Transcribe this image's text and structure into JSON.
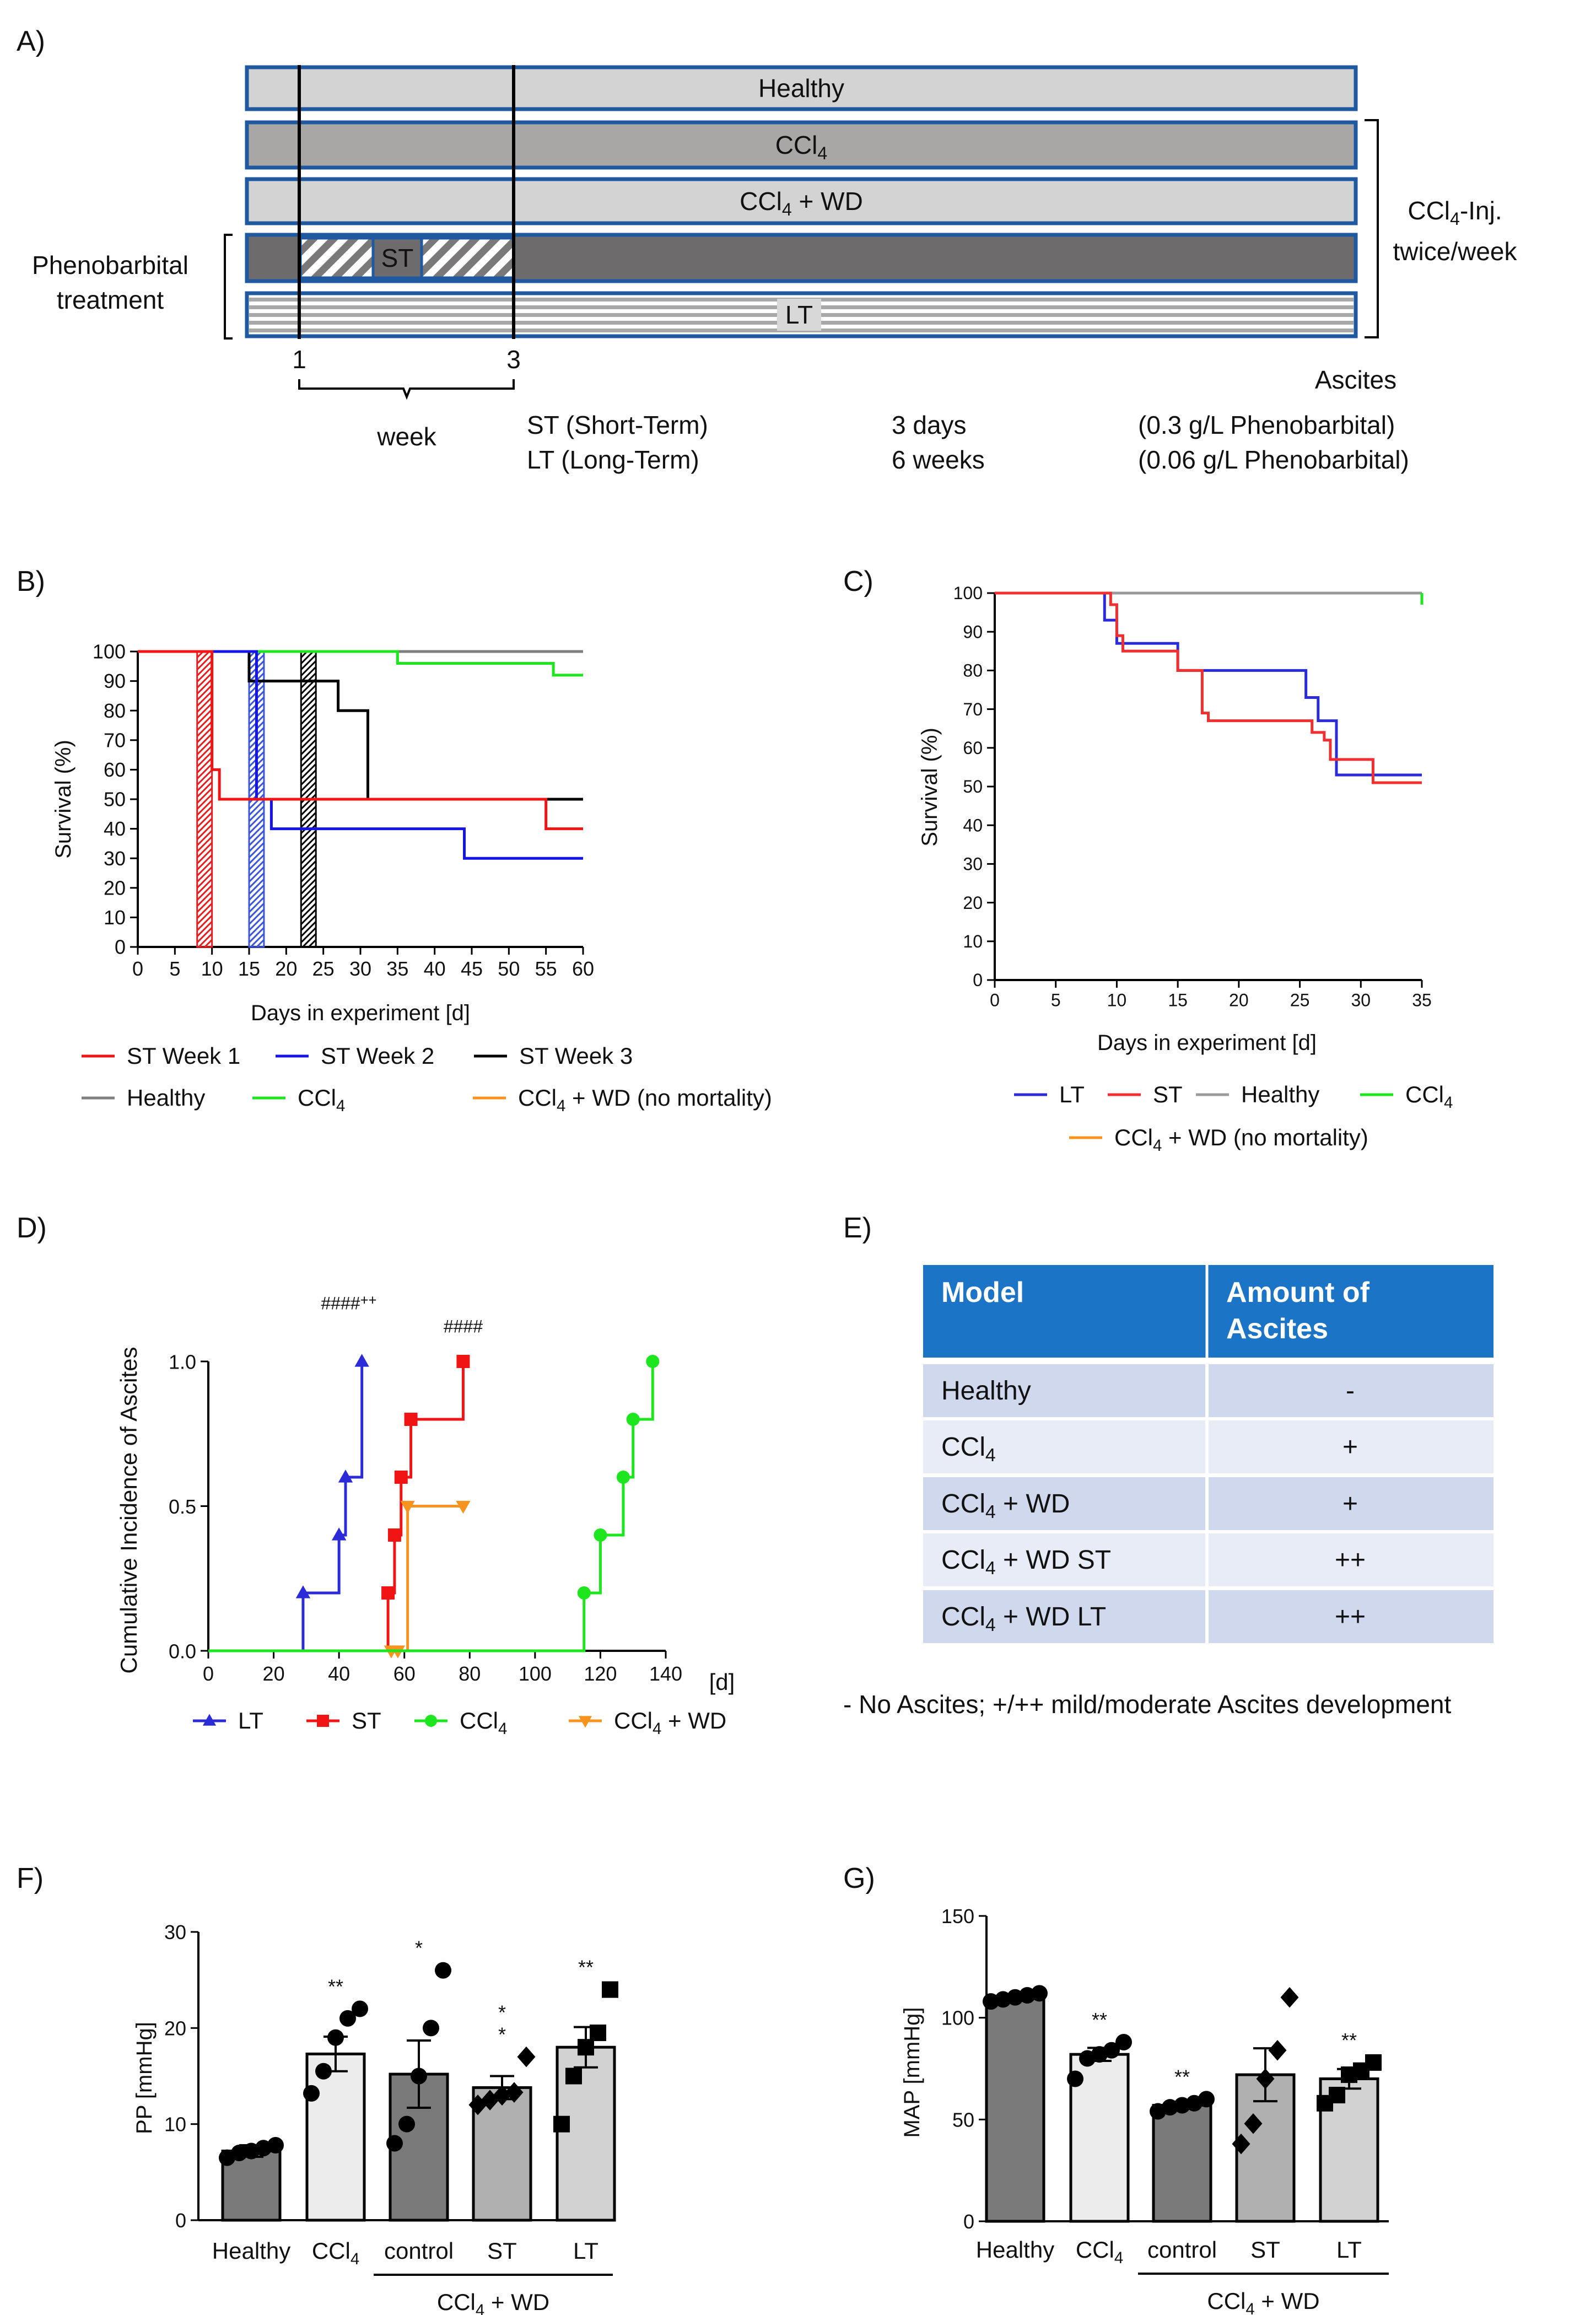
{
  "panel_labels": {
    "a": "A)",
    "b": "B)",
    "c": "C)",
    "d": "D)",
    "e": "E)",
    "f": "F)",
    "g": "G)"
  },
  "timeline": {
    "rows": [
      {
        "label": "Healthy",
        "color": "#d3d3d3"
      },
      {
        "label": "CCl",
        "sub": "4",
        "color": "#a9a6a6"
      },
      {
        "label": "CCl",
        "sub": "4",
        "tail": " + WD",
        "color": "#d3d3d3"
      },
      {
        "label": "ST",
        "color": "#6d6b6b"
      },
      {
        "label": "LT",
        "color": "#d8d8d8"
      }
    ],
    "week_ticks": [
      "1",
      "3"
    ],
    "week_label": "week",
    "phenobarbital_line1": "Phenobarbital",
    "phenobarbital_line2": "treatment",
    "injection_line1_pre": "CCl",
    "injection_line1_sub": "4",
    "injection_line1_post": "-Inj.",
    "injection_line2": "twice/week",
    "ascites_label": "Ascites",
    "st_name": "ST (Short-Term)",
    "lt_name": "LT (Long-Term)",
    "st_duration": "3 days",
    "lt_duration": "6 weeks",
    "st_dose": "(0.3 g/L Phenobarbital)",
    "lt_dose": "(0.06 g/L Phenobarbital)",
    "blue": "#1f5aa0"
  },
  "chart_data": [
    {
      "id": "B",
      "type": "line",
      "title": "",
      "xlabel": "Days in experiment [d]",
      "ylabel": "Survival (%)",
      "xlim": [
        0,
        60
      ],
      "ylim": [
        0,
        100
      ],
      "xticks": [
        0,
        5,
        10,
        15,
        20,
        25,
        30,
        35,
        40,
        45,
        50,
        55,
        60
      ],
      "yticks": [
        0,
        10,
        20,
        30,
        40,
        50,
        60,
        70,
        80,
        90,
        100
      ],
      "series": [
        {
          "name": "Healthy",
          "color": "#7f7f7f",
          "x": [
            0,
            60
          ],
          "y": [
            100,
            100
          ]
        },
        {
          "name": "CCl4",
          "color": "#1ee61e",
          "x": [
            0,
            35,
            35,
            56,
            56,
            60
          ],
          "y": [
            100,
            100,
            96,
            96,
            92,
            92
          ]
        },
        {
          "name": "ST Week 3",
          "color": "#000000",
          "x": [
            0,
            15,
            15,
            22,
            22,
            27,
            27,
            31,
            31,
            60
          ],
          "y": [
            100,
            100,
            90,
            90,
            90,
            90,
            80,
            80,
            50,
            50
          ]
        },
        {
          "name": "ST Week 2",
          "color": "#1414e6",
          "x": [
            0,
            16,
            16,
            18,
            18,
            44,
            44,
            60
          ],
          "y": [
            100,
            100,
            50,
            50,
            40,
            40,
            30,
            30
          ]
        },
        {
          "name": "ST Week 1",
          "color": "#f01414",
          "x": [
            0,
            10,
            10,
            11,
            11,
            55,
            55,
            60
          ],
          "y": [
            100,
            100,
            60,
            60,
            50,
            50,
            40,
            40
          ]
        }
      ],
      "hatched_periods": [
        {
          "from": 8,
          "to": 10,
          "color": "#e81e1e"
        },
        {
          "from": 15,
          "to": 17,
          "color": "#3a55d8"
        },
        {
          "from": 22,
          "to": 24,
          "color": "#000000"
        }
      ],
      "legend_rows": [
        [
          {
            "label": "ST Week 1",
            "color": "#f01414"
          },
          {
            "label": "ST Week 2",
            "color": "#1414e6"
          },
          {
            "label": "ST Week 3",
            "color": "#000000"
          }
        ],
        [
          {
            "label": "Healthy",
            "color": "#7f7f7f"
          },
          {
            "label": "CCl",
            "sub": "4",
            "color": "#1ee61e"
          },
          {
            "label": "CCl",
            "sub": "4",
            "tail": " + WD (no mortality)",
            "color": "#f7941d"
          }
        ]
      ]
    },
    {
      "id": "C",
      "type": "line",
      "title": "",
      "xlabel": "Days in experiment [d]",
      "ylabel": "Survival (%)",
      "xlim": [
        0,
        35
      ],
      "ylim": [
        0,
        100
      ],
      "xticks": [
        0,
        5,
        10,
        15,
        20,
        25,
        30,
        35
      ],
      "yticks": [
        0,
        10,
        20,
        30,
        40,
        50,
        60,
        70,
        80,
        90,
        100
      ],
      "series": [
        {
          "name": "Healthy",
          "color": "#9a9a9a",
          "x": [
            0,
            35
          ],
          "y": [
            100,
            100
          ]
        },
        {
          "name": "CCl4",
          "color": "#1ee61e",
          "x": [
            35,
            35
          ],
          "y": [
            100,
            97
          ]
        },
        {
          "name": "LT",
          "color": "#2b2bd8",
          "x": [
            0,
            9,
            9,
            9.5,
            9.5,
            10,
            10,
            15,
            15,
            25.5,
            25.5,
            26.5,
            26.5,
            28,
            28,
            35
          ],
          "y": [
            100,
            100,
            93,
            93,
            93,
            93,
            87,
            87,
            80,
            80,
            73,
            73,
            67,
            67,
            53,
            53
          ]
        },
        {
          "name": "ST",
          "color": "#f03030",
          "x": [
            0,
            9.5,
            9.5,
            10,
            10,
            10.5,
            10.5,
            15,
            15,
            17,
            17,
            17.5,
            17.5,
            26,
            26,
            27,
            27,
            27.5,
            27.5,
            31,
            31,
            35
          ],
          "y": [
            100,
            100,
            97,
            97,
            89,
            89,
            85,
            85,
            80,
            80,
            69,
            69,
            67,
            67,
            64,
            64,
            62,
            62,
            57,
            57,
            51,
            51
          ]
        }
      ],
      "legend_rows": [
        [
          {
            "label": "LT",
            "color": "#2b2bd8"
          },
          {
            "label": "ST",
            "color": "#f03030"
          },
          {
            "label": "Healthy",
            "color": "#9a9a9a"
          },
          {
            "label": "CCl",
            "sub": "4",
            "color": "#1ee61e"
          }
        ],
        [
          {
            "label": "CCl",
            "sub": "4",
            "tail": " + WD (no mortality)",
            "color": "#f7941d"
          }
        ]
      ]
    },
    {
      "id": "D",
      "type": "line",
      "title": "",
      "xlabel": "[d]",
      "ylabel": "Cumulative Incidence of Ascites",
      "xlim": [
        0,
        140
      ],
      "ylim": [
        0,
        1.0
      ],
      "xticks": [
        0,
        20,
        40,
        60,
        80,
        100,
        120,
        140
      ],
      "yticks": [
        0.0,
        0.5,
        1.0
      ],
      "ytick_labels": [
        "0.0",
        "0.5",
        "1.0"
      ],
      "annotations": [
        {
          "text": "####",
          "sup": "++",
          "x": 43,
          "y": 1.18
        },
        {
          "text": "####",
          "sup": "",
          "x": 78,
          "y": 1.1
        }
      ],
      "series": [
        {
          "name": "LT",
          "color": "#2b2bd8",
          "marker": "triangle",
          "x": [
            0,
            29,
            29,
            40,
            40,
            42,
            42,
            47,
            47
          ],
          "y": [
            0,
            0,
            0.2,
            0.2,
            0.4,
            0.4,
            0.6,
            0.6,
            1.0
          ],
          "points_x": [
            29,
            40,
            42,
            47
          ],
          "points_y": [
            0.2,
            0.4,
            0.6,
            1.0
          ]
        },
        {
          "name": "ST",
          "color": "#f01414",
          "marker": "square",
          "x": [
            0,
            55,
            55,
            57,
            57,
            59,
            59,
            62,
            62,
            78,
            78
          ],
          "y": [
            0,
            0,
            0.2,
            0.2,
            0.4,
            0.4,
            0.6,
            0.6,
            0.8,
            0.8,
            1.0
          ],
          "points_x": [
            55,
            57,
            59,
            62,
            78
          ],
          "points_y": [
            0.2,
            0.4,
            0.6,
            0.8,
            1.0
          ]
        },
        {
          "name": "CCl4 + WD",
          "color": "#f7941d",
          "marker": "triangle-down",
          "x": [
            0,
            56,
            56,
            61,
            61,
            78
          ],
          "y": [
            0,
            0,
            0,
            0,
            0.5,
            0.5
          ],
          "points_x": [
            56,
            58,
            61,
            78
          ],
          "points_y": [
            0,
            0,
            0.5,
            0.5
          ]
        },
        {
          "name": "CCl4",
          "color": "#1ee61e",
          "marker": "circle",
          "x": [
            0,
            115,
            115,
            120,
            120,
            127,
            127,
            130,
            130,
            136,
            136
          ],
          "y": [
            0,
            0,
            0.2,
            0.2,
            0.4,
            0.4,
            0.6,
            0.6,
            0.8,
            0.8,
            1.0
          ],
          "points_x": [
            115,
            120,
            127,
            130,
            136
          ],
          "points_y": [
            0.2,
            0.4,
            0.6,
            0.8,
            1.0
          ]
        }
      ],
      "legend_rows": [
        [
          {
            "label": "LT",
            "color": "#2b2bd8",
            "marker": "triangle"
          },
          {
            "label": "ST",
            "color": "#f01414",
            "marker": "square"
          },
          {
            "label": "CCl",
            "sub": "4",
            "color": "#1ee61e",
            "marker": "circle"
          },
          {
            "label": "CCl",
            "sub": "4",
            "tail": " + WD",
            "color": "#f7941d",
            "marker": "triangle-down"
          }
        ]
      ]
    },
    {
      "id": "E",
      "type": "table",
      "columns": [
        "Model",
        "Amount of\nAscites"
      ],
      "column_line1": [
        "Model",
        "Amount of"
      ],
      "column_line2": [
        "",
        "Ascites"
      ],
      "rows": [
        {
          "model": "Healthy",
          "sub": "",
          "tail": "",
          "amount": "-"
        },
        {
          "model": "CCl",
          "sub": "4",
          "tail": "",
          "amount": "+"
        },
        {
          "model": "CCl",
          "sub": "4",
          "tail": " + WD",
          "amount": "+"
        },
        {
          "model": "CCl",
          "sub": "4",
          "tail": " + WD ST",
          "amount": "++"
        },
        {
          "model": "CCl",
          "sub": "4",
          "tail": " + WD LT",
          "amount": "++"
        }
      ],
      "footnote": "- No Ascites; +/++ mild/moderate Ascites development",
      "header_color": "#1b74c6",
      "row_colors": [
        "#cfd8ec",
        "#e8ecf6"
      ]
    },
    {
      "id": "F",
      "type": "bar",
      "title": "",
      "xlabel": "",
      "ylabel": "PP [mmHg]",
      "ylim": [
        0,
        30
      ],
      "yticks": [
        0,
        10,
        20,
        30
      ],
      "categories": [
        "Healthy",
        "CCl4",
        "control",
        "ST",
        "LT"
      ],
      "group_label": "CCl4 + WD",
      "values": [
        7.2,
        17.3,
        15.2,
        13.8,
        18.0
      ],
      "errors": [
        0.6,
        1.8,
        3.5,
        1.2,
        2.1
      ],
      "significance": [
        "",
        "**",
        "*",
        "*|*",
        "**"
      ],
      "bar_colors": [
        "#7a7a7a",
        "#ececec",
        "#7a7a7a",
        "#b0b0b0",
        "#d2d2d2"
      ],
      "points": [
        [
          6.5,
          7.0,
          7.2,
          7.5,
          7.8
        ],
        [
          13.2,
          15.5,
          19.0,
          21.0,
          22.0
        ],
        [
          8.0,
          10.0,
          15.0,
          20.0,
          26.0
        ],
        [
          12.0,
          12.5,
          13.0,
          13.3,
          17.0
        ],
        [
          10.0,
          15.0,
          18.0,
          19.5,
          24.0
        ]
      ],
      "markers": [
        "circle",
        "circle",
        "circle",
        "diamond",
        "square"
      ]
    },
    {
      "id": "G",
      "type": "bar",
      "title": "",
      "xlabel": "",
      "ylabel": "MAP [mmHg]",
      "ylim": [
        0,
        150
      ],
      "yticks": [
        0,
        50,
        100,
        150
      ],
      "categories": [
        "Healthy",
        "CCl4",
        "control",
        "ST",
        "LT"
      ],
      "group_label": "CCl4 + WD",
      "values": [
        110,
        82,
        57,
        72,
        70
      ],
      "errors": [
        1.2,
        3.2,
        1.6,
        13,
        4.8
      ],
      "significance": [
        "",
        "**",
        "**",
        "",
        "**"
      ],
      "bar_colors": [
        "#7a7a7a",
        "#ececec",
        "#7a7a7a",
        "#b0b0b0",
        "#d2d2d2"
      ],
      "points": [
        [
          108,
          109,
          110,
          111,
          112
        ],
        [
          70,
          80,
          82,
          84,
          88
        ],
        [
          54,
          56,
          57,
          58,
          60
        ],
        [
          38,
          48,
          70,
          84,
          110
        ],
        [
          58,
          62,
          72,
          74,
          78
        ]
      ],
      "markers": [
        "circle",
        "circle",
        "circle",
        "diamond",
        "square"
      ]
    }
  ]
}
